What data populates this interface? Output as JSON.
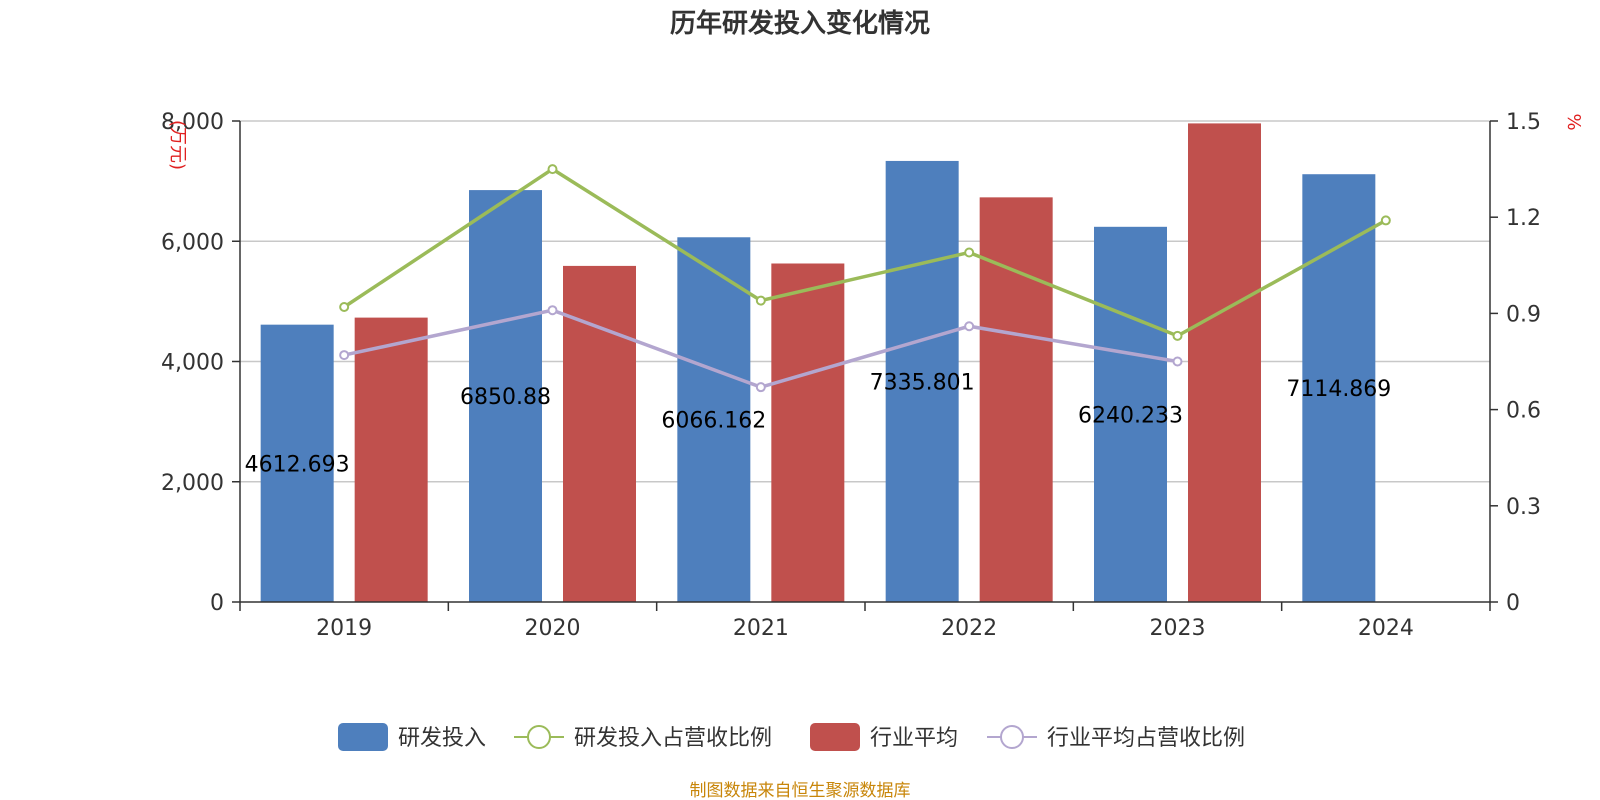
{
  "chart_data": {
    "type": "bar",
    "title": "历年研发投入变化情况",
    "categories": [
      "2019",
      "2020",
      "2021",
      "2022",
      "2023",
      "2024"
    ],
    "y_left": {
      "unit": "(万元)",
      "ylim": [
        0,
        8000
      ],
      "ticks": [
        "0",
        "2,000",
        "4,000",
        "6,000",
        "8,000"
      ],
      "tick_values": [
        0,
        2000,
        4000,
        6000,
        8000
      ]
    },
    "y_right": {
      "unit": "%",
      "ylim": [
        0,
        1.5
      ],
      "ticks": [
        "0",
        "0.3",
        "0.6",
        "0.9",
        "1.2",
        "1.5"
      ],
      "tick_values": [
        0,
        0.3,
        0.6,
        0.9,
        1.2,
        1.5
      ]
    },
    "series": [
      {
        "name": "研发投入",
        "kind": "bar",
        "axis": "left",
        "color": "#4e7fbd",
        "values": [
          4612.693,
          6850.88,
          6066.162,
          7335.801,
          6240.233,
          7114.869
        ],
        "labels": [
          "4612.693",
          "6850.88",
          "6066.162",
          "7335.801",
          "6240.233",
          "7114.869"
        ]
      },
      {
        "name": "研发投入占营收比例",
        "kind": "line",
        "axis": "right",
        "color": "#9bbb59",
        "values": [
          0.92,
          1.35,
          0.94,
          1.09,
          0.83,
          1.19
        ]
      },
      {
        "name": "行业平均",
        "kind": "bar",
        "axis": "left",
        "color": "#c0504d",
        "values": [
          4730,
          5590,
          5630,
          6730,
          7960,
          null
        ]
      },
      {
        "name": "行业平均占营收比例",
        "kind": "line",
        "axis": "right",
        "color": "#b3a6cf",
        "values": [
          0.77,
          0.91,
          0.67,
          0.86,
          0.75,
          null
        ]
      }
    ],
    "legend_position": "bottom",
    "grid": true
  },
  "footer": {
    "source": "制图数据来自恒生聚源数据库"
  }
}
